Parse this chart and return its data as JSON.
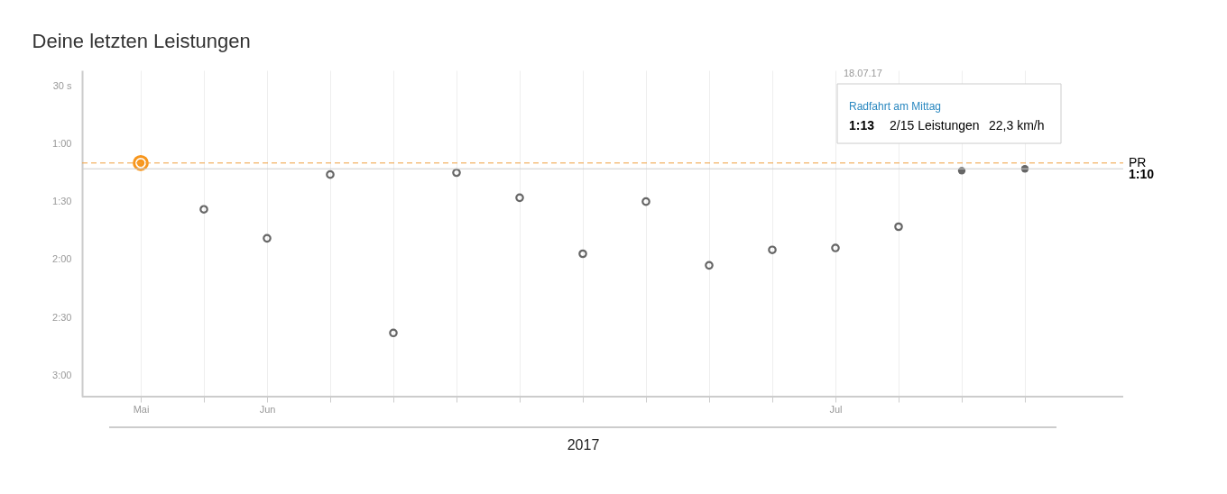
{
  "chart_data": {
    "type": "scatter",
    "title": "Deine letzten Leistungen",
    "xlabel": "2017",
    "categories": [
      "Mai",
      null,
      "Jun",
      null,
      null,
      null,
      null,
      null,
      null,
      null,
      null,
      "Jul",
      null,
      null,
      null
    ],
    "series": [
      {
        "color": "#f7961d",
        "values": [
          70,
          null,
          null,
          null,
          null,
          null,
          null,
          null,
          null,
          null,
          null,
          null,
          null,
          null,
          null
        ]
      },
      {
        "color": "#666666",
        "values": [
          null,
          94,
          109,
          76,
          158,
          75,
          88,
          117,
          90,
          123,
          115,
          114,
          103,
          null,
          null
        ]
      },
      {
        "color": "#666666",
        "values": [
          null,
          null,
          null,
          null,
          null,
          null,
          null,
          null,
          null,
          null,
          null,
          null,
          null,
          74,
          73
        ]
      }
    ],
    "ylim": [
      191,
      22
    ],
    "yticks": [
      {
        "value": 30,
        "label": "30 s"
      },
      {
        "value": 60,
        "label": "1:00"
      },
      {
        "value": 90,
        "label": "1:30"
      },
      {
        "value": 120,
        "label": "2:00"
      },
      {
        "value": 150,
        "label": "2:30"
      },
      {
        "value": 180,
        "label": "3:00"
      }
    ],
    "grid": "x",
    "marker": "circle",
    "legend": false,
    "ref_lines": [
      {
        "axis": "y",
        "value": 70,
        "label": "PR",
        "color": "#f0a040",
        "line_style": "dashed"
      },
      {
        "axis": "y",
        "value": 73,
        "color": "#cccccc",
        "line_style": "solid"
      }
    ],
    "annotations": [
      "1:10",
      "18.07.17",
      "Radfahrt am Mittag",
      "1:13",
      "2/15 Leistungen",
      "22,3 km/h"
    ]
  }
}
